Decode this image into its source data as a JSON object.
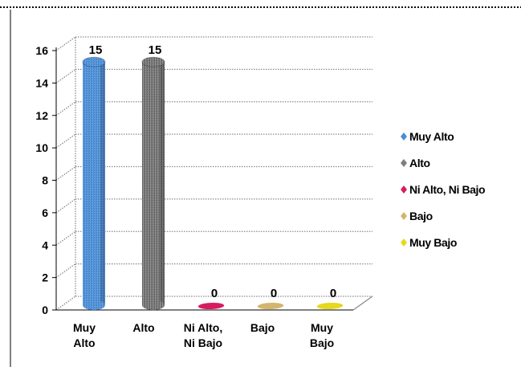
{
  "chart_data": {
    "type": "bar",
    "title": "",
    "xlabel": "",
    "ylabel": "",
    "categories": [
      [
        "Muy",
        "Alto"
      ],
      [
        "Alto"
      ],
      [
        "Ni Alto,",
        "Ni Bajo"
      ],
      [
        "Bajo"
      ],
      [
        "Muy",
        "Bajo"
      ]
    ],
    "values": [
      15,
      15,
      0,
      0,
      0
    ],
    "data_labels": [
      "15",
      "15",
      "0",
      "0",
      "0"
    ],
    "ylim": [
      0,
      16
    ],
    "y_ticks": [
      "0",
      "2",
      "4",
      "6",
      "8",
      "10",
      "12",
      "14",
      "16"
    ],
    "legend": {
      "position": "right",
      "entries": [
        "Muy Alto",
        "Alto",
        "Ni Alto, Ni Bajo",
        "Bajo",
        "Muy Bajo"
      ]
    },
    "colors": [
      "#4a8fd6",
      "#7f7f7f",
      "#d81b60",
      "#d4b56e",
      "#e6d81c"
    ],
    "grid": true,
    "style": "3d-cylinder"
  }
}
